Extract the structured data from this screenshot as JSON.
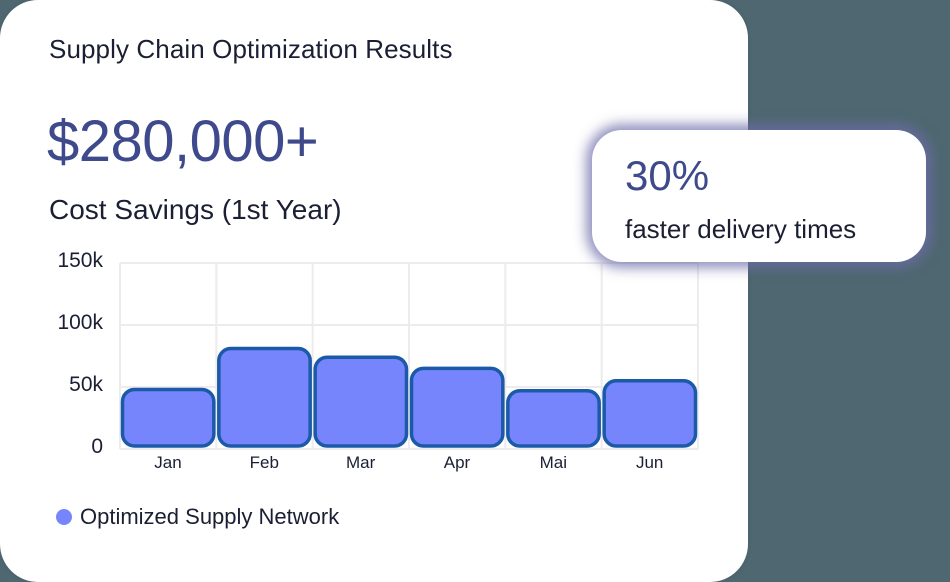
{
  "card": {
    "title": "Supply Chain Optimization Results",
    "headline_value": "$280,000+",
    "headline_label": "Cost Savings (1st Year)"
  },
  "popup": {
    "value": "30%",
    "label": "faster delivery times"
  },
  "colors": {
    "background": "#4e6770",
    "accent_text": "#3e4a8c",
    "bar_fill": "#7685fb",
    "bar_stroke": "#1a5aa8",
    "grid": "#ececec"
  },
  "chart_data": {
    "type": "bar",
    "title": "",
    "xlabel": "",
    "ylabel": "",
    "categories": [
      "Jan",
      "Feb",
      "Mar",
      "Apr",
      "Mai",
      "Jun"
    ],
    "series": [
      {
        "name": "Optimized Supply Network",
        "values": [
          48000,
          81000,
          74000,
          65000,
          47000,
          55000
        ],
        "color": "#7685fb"
      }
    ],
    "yticks": [
      "0",
      "50k",
      "100k",
      "150k"
    ],
    "ylim": [
      0,
      150000
    ],
    "grid": true,
    "legend_position": "bottom-left"
  },
  "legend": {
    "items": [
      {
        "label": "Optimized Supply Network",
        "color": "#7685fb"
      }
    ]
  }
}
